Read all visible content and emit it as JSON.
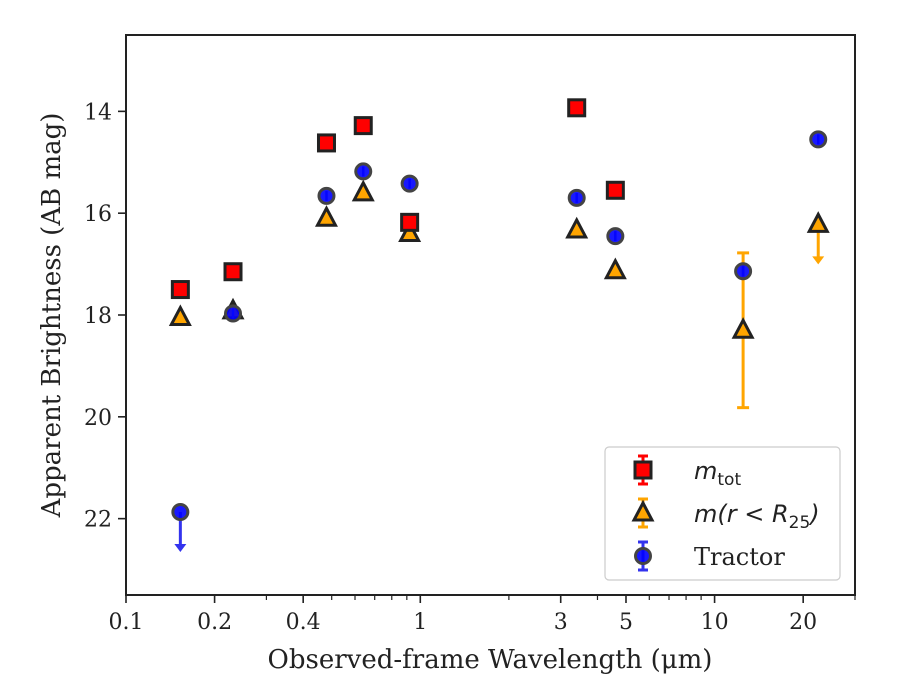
{
  "chart_data": {
    "type": "scatter",
    "title": "",
    "xlabel": "Observed-frame Wavelength (μm)",
    "ylabel": "Apparent Brightness (AB mag)",
    "xscale": "log",
    "xlim": [
      0.1,
      30
    ],
    "ylim": [
      23.5,
      12.5
    ],
    "y_inverted": true,
    "xticks": [
      {
        "value": 0.1,
        "label": "0.1"
      },
      {
        "value": 0.2,
        "label": "0.2"
      },
      {
        "value": 0.4,
        "label": "0.4"
      },
      {
        "value": 1,
        "label": "1"
      },
      {
        "value": 3,
        "label": "3"
      },
      {
        "value": 5,
        "label": "5"
      },
      {
        "value": 10,
        "label": "10"
      },
      {
        "value": 20,
        "label": "20"
      }
    ],
    "yticks": [
      {
        "value": 14,
        "label": "14"
      },
      {
        "value": 16,
        "label": "16"
      },
      {
        "value": 18,
        "label": "18"
      },
      {
        "value": 20,
        "label": "20"
      },
      {
        "value": 22,
        "label": "22"
      }
    ],
    "grid": false,
    "legend_position": "lower-right",
    "series": [
      {
        "name": "m_tot",
        "legend": {
          "base": "m",
          "sub": "tot",
          "rest": ""
        },
        "marker": "square",
        "color": "#ff0000",
        "edge": "#222222",
        "errcolor": "#ff0000",
        "points": [
          {
            "x": 0.153,
            "y": 17.5
          },
          {
            "x": 0.231,
            "y": 17.15
          },
          {
            "x": 0.48,
            "y": 14.62
          },
          {
            "x": 0.64,
            "y": 14.28
          },
          {
            "x": 0.92,
            "y": 16.18
          },
          {
            "x": 3.4,
            "y": 13.93
          },
          {
            "x": 4.6,
            "y": 15.55
          }
        ]
      },
      {
        "name": "m(r < R25)",
        "legend": {
          "base": "m(r < R",
          "sub": "25",
          "rest": ")"
        },
        "marker": "triangle",
        "color": "#ffa500",
        "edge": "#222222",
        "errcolor": "#ffa500",
        "points": [
          {
            "x": 0.153,
            "y": 18.05
          },
          {
            "x": 0.231,
            "y": 17.92
          },
          {
            "x": 0.48,
            "y": 16.1
          },
          {
            "x": 0.64,
            "y": 15.6
          },
          {
            "x": 0.92,
            "y": 16.4
          },
          {
            "x": 3.4,
            "y": 16.33
          },
          {
            "x": 4.6,
            "y": 17.13
          },
          {
            "x": 12.5,
            "y": 18.3,
            "err_low": 1.52,
            "err_high": 1.52
          },
          {
            "x": 22.5,
            "y": 16.22,
            "upper_limit": true
          }
        ]
      },
      {
        "name": "Tractor",
        "legend": {
          "base": "Tractor",
          "sub": "",
          "rest": ""
        },
        "marker": "circle",
        "color": "#0000ff",
        "edge": "#444444",
        "errcolor": "#3333ee",
        "points": [
          {
            "x": 0.153,
            "y": 21.87,
            "upper_limit": true
          },
          {
            "x": 0.231,
            "y": 17.97
          },
          {
            "x": 0.48,
            "y": 15.66
          },
          {
            "x": 0.64,
            "y": 15.18
          },
          {
            "x": 0.92,
            "y": 15.42
          },
          {
            "x": 3.4,
            "y": 15.7
          },
          {
            "x": 4.6,
            "y": 16.45
          },
          {
            "x": 12.5,
            "y": 17.14
          },
          {
            "x": 22.5,
            "y": 14.55
          }
        ]
      }
    ]
  }
}
